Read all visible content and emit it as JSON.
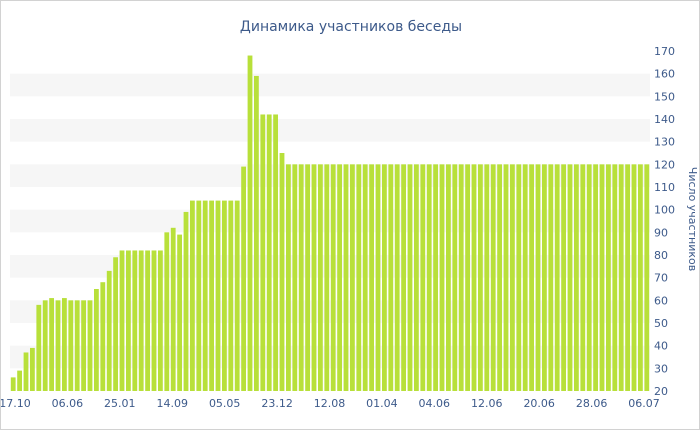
{
  "chart_data": {
    "type": "bar",
    "title": "Динамика участников беседы",
    "ylabel": "Число участников",
    "xlabel": "",
    "ylim": [
      20,
      170
    ],
    "yticks": [
      20,
      30,
      40,
      50,
      60,
      70,
      80,
      90,
      100,
      110,
      120,
      130,
      140,
      150,
      160,
      170
    ],
    "x_tick_labels": [
      "17.10",
      "06.06",
      "25.01",
      "14.09",
      "05.05",
      "23.12",
      "12.08",
      "01.04",
      "04.06",
      "12.06",
      "20.06",
      "28.06",
      "06.07"
    ],
    "grid": "alternating horizontal bands",
    "bar_color": "#b8e03a",
    "series": [
      {
        "values": [
          26,
          29,
          37,
          39,
          58,
          60,
          61,
          60,
          61,
          60,
          60,
          60,
          60,
          65,
          68,
          73,
          79,
          82,
          82,
          82,
          82,
          82,
          82,
          82,
          90,
          92,
          89,
          99,
          104,
          104,
          104,
          104,
          104,
          104,
          104,
          104,
          119,
          168,
          159,
          142,
          142,
          142,
          125,
          120,
          120,
          120,
          120,
          120,
          120,
          120,
          120,
          120,
          120,
          120,
          120,
          120,
          120,
          120,
          120,
          120,
          120,
          120,
          120,
          120,
          120,
          120,
          120,
          120,
          120,
          120,
          120,
          120,
          120,
          120,
          120,
          120,
          120,
          120,
          120,
          120,
          120,
          120,
          120,
          120,
          120,
          120,
          120,
          120,
          120,
          120,
          120,
          120,
          120,
          120,
          120,
          120,
          120,
          120,
          120,
          120
        ]
      }
    ]
  }
}
